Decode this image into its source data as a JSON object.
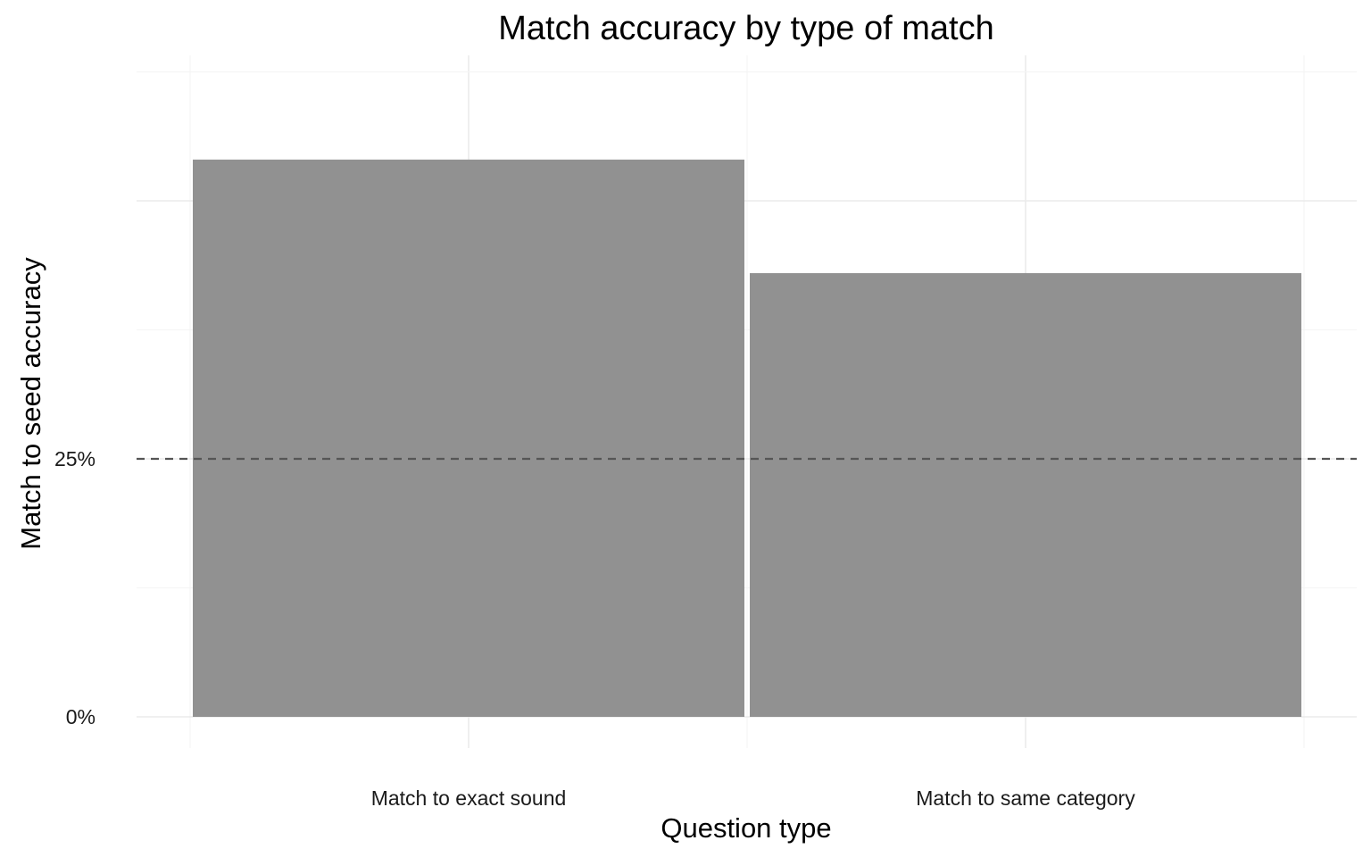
{
  "chart_data": {
    "type": "bar",
    "title": "Match accuracy by type of match",
    "xlabel": "Question type",
    "ylabel": "Match to seed accuracy",
    "categories": [
      "Match to exact sound",
      "Match to same category"
    ],
    "values": [
      0.54,
      0.43
    ],
    "ylim": [
      0,
      0.6
    ],
    "y_ticks": [
      {
        "value": 0,
        "label": "0%"
      },
      {
        "value": 0.25,
        "label": "25%"
      }
    ],
    "reference_line": {
      "value": 0.25,
      "style": "dashed"
    },
    "grid": true,
    "legend": "none",
    "colors": {
      "bar": "#919191",
      "reference_line": "#555555",
      "grid_major": "#ebebeb",
      "grid_minor": "#f5f5f5"
    }
  }
}
